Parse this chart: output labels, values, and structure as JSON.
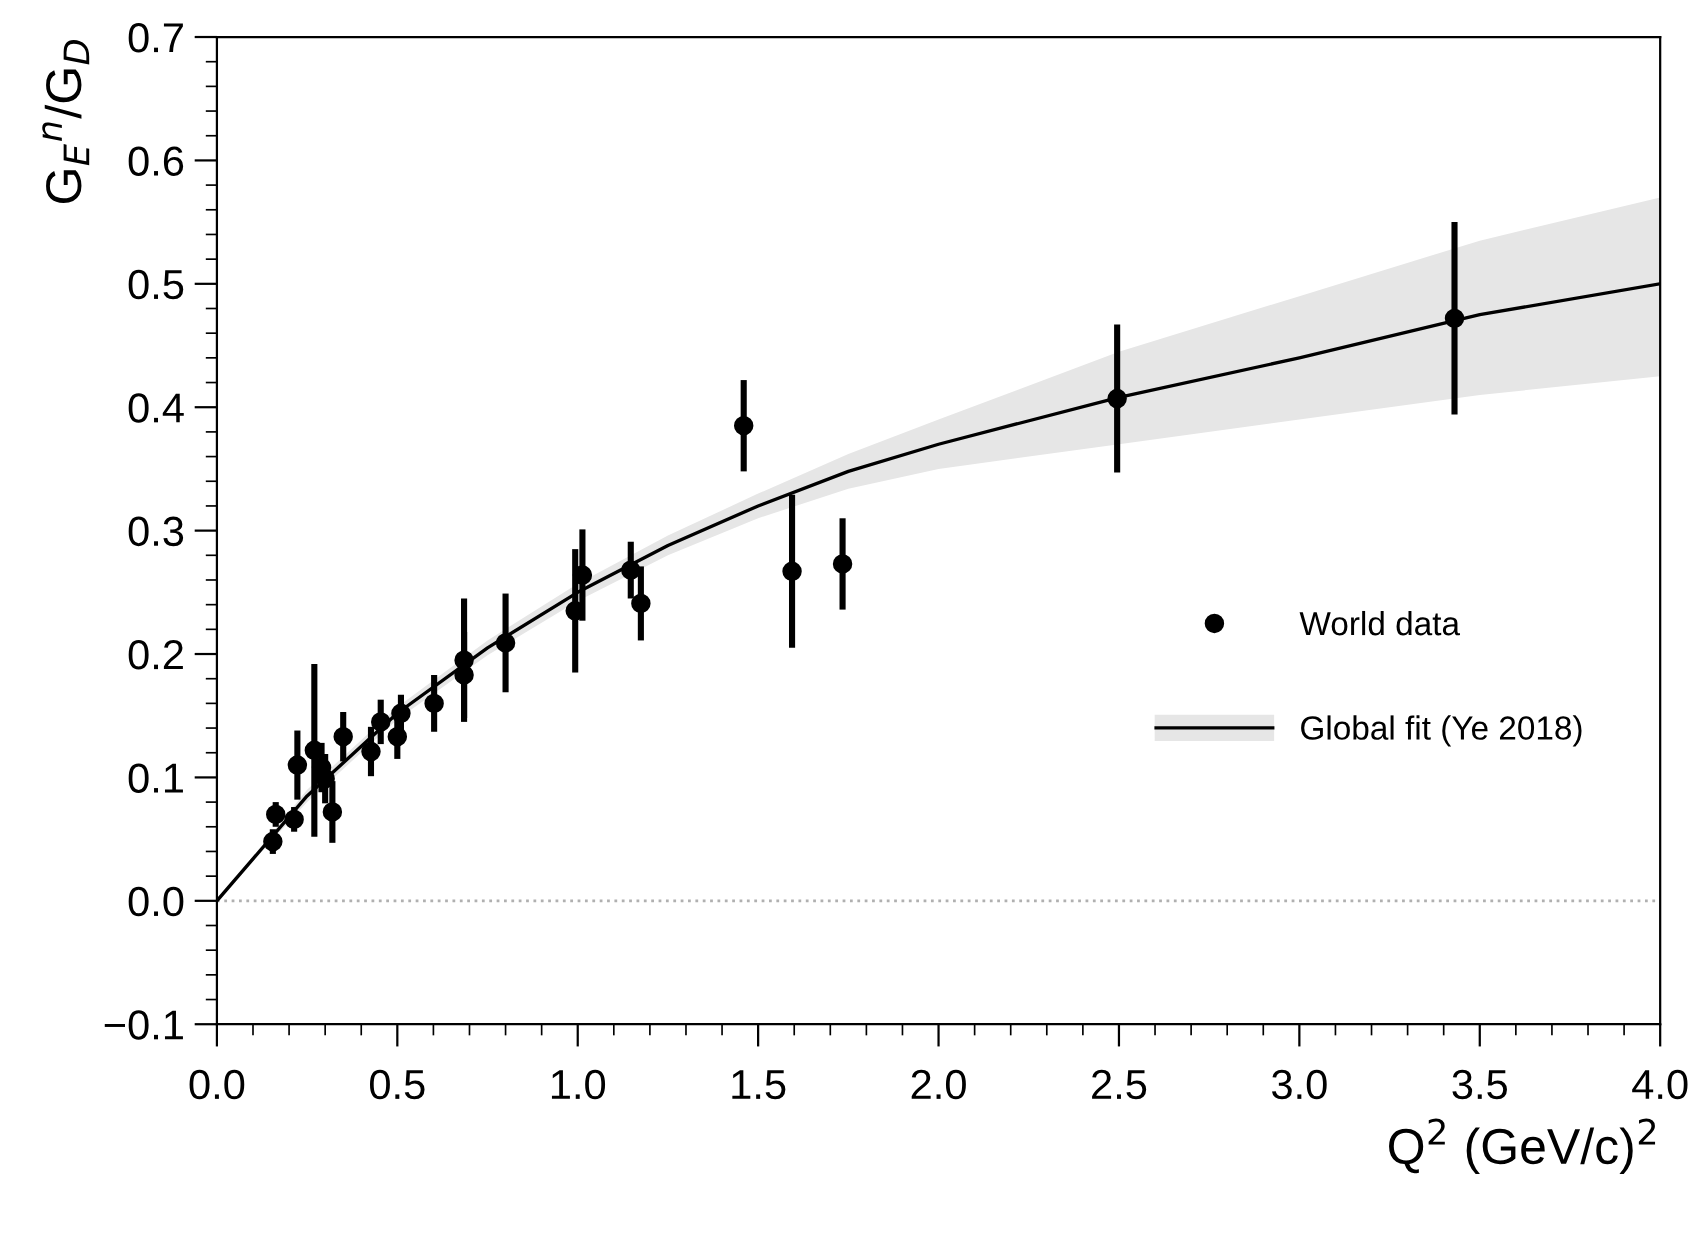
{
  "chart_data": {
    "type": "scatter",
    "xlabel": "Q$^{2}$ (GeV/c)$^{2}$",
    "ylabel": "G$_{E}$$^{n}$/G$_{D}$",
    "xlim": [
      0.0,
      4.0
    ],
    "ylim": [
      -0.1,
      0.7
    ],
    "xticks": [
      {
        "value": 0,
        "label": "0.0"
      },
      {
        "value": 0.5,
        "label": "0.5"
      },
      {
        "value": 1,
        "label": "1.0"
      },
      {
        "value": 1.5,
        "label": "1.5"
      },
      {
        "value": 2,
        "label": "2.0"
      },
      {
        "value": 2.5,
        "label": "2.5"
      },
      {
        "value": 3,
        "label": "3.0"
      },
      {
        "value": 3.5,
        "label": "3.5"
      },
      {
        "value": 4,
        "label": "4.0"
      }
    ],
    "yticks": [
      {
        "value": -0.1,
        "label": "−0.1"
      },
      {
        "value": 0,
        "label": "0.0"
      },
      {
        "value": 0.1,
        "label": "0.1"
      },
      {
        "value": 0.2,
        "label": "0.2"
      },
      {
        "value": 0.3,
        "label": "0.3"
      },
      {
        "value": 0.4,
        "label": "0.4"
      },
      {
        "value": 0.5,
        "label": "0.5"
      },
      {
        "value": 0.6,
        "label": "0.6"
      },
      {
        "value": 0.7,
        "label": "0.7"
      }
    ],
    "grid": false,
    "legend": "right",
    "ref_lines": [
      {
        "axis": "y",
        "value": 0,
        "color": "#b0b0b0",
        "line_style": "dotted"
      }
    ],
    "series": [
      {
        "name": "World data",
        "marker": "circle",
        "color": "#000000",
        "x": [
          0.155,
          0.163,
          0.214,
          0.223,
          0.27,
          0.29,
          0.3,
          0.32,
          0.35,
          0.427,
          0.454,
          0.5,
          0.51,
          0.602,
          0.685,
          0.685,
          0.8,
          0.993,
          1.013,
          1.147,
          1.175,
          1.46,
          1.594,
          1.734,
          2.495,
          3.43
        ],
        "values": [
          0.048,
          0.07,
          0.066,
          0.11,
          0.122,
          0.108,
          0.099,
          0.072,
          0.133,
          0.121,
          0.145,
          0.133,
          0.152,
          0.16,
          0.195,
          0.183,
          0.209,
          0.235,
          0.264,
          0.268,
          0.241,
          0.385,
          0.267,
          0.273,
          0.407,
          0.472
        ],
        "errors": [
          0.01,
          0.01,
          0.01,
          0.028,
          0.07,
          0.02,
          0.02,
          0.025,
          0.02,
          0.02,
          0.018,
          0.018,
          0.015,
          0.023,
          0.05,
          0.035,
          0.04,
          0.05,
          0.037,
          0.023,
          0.03,
          0.037,
          0.062,
          0.037,
          0.06,
          0.078
        ]
      },
      {
        "name": "Global fit (Ye 2018)",
        "type": "line",
        "color": "#000000",
        "x": [
          0,
          0.25,
          0.5,
          0.75,
          1.0,
          1.25,
          1.5,
          1.75,
          2.0,
          2.5,
          3.0,
          3.5,
          4.0
        ],
        "values": [
          0,
          0.085,
          0.152,
          0.205,
          0.25,
          0.288,
          0.32,
          0.348,
          0.37,
          0.408,
          0.44,
          0.475,
          0.5
        ],
        "lower": [
          0,
          0.08,
          0.147,
          0.199,
          0.243,
          0.28,
          0.31,
          0.334,
          0.35,
          0.37,
          0.39,
          0.41,
          0.425
        ],
        "upper": [
          0,
          0.09,
          0.157,
          0.211,
          0.257,
          0.296,
          0.33,
          0.362,
          0.39,
          0.445,
          0.49,
          0.535,
          0.57
        ]
      }
    ]
  }
}
